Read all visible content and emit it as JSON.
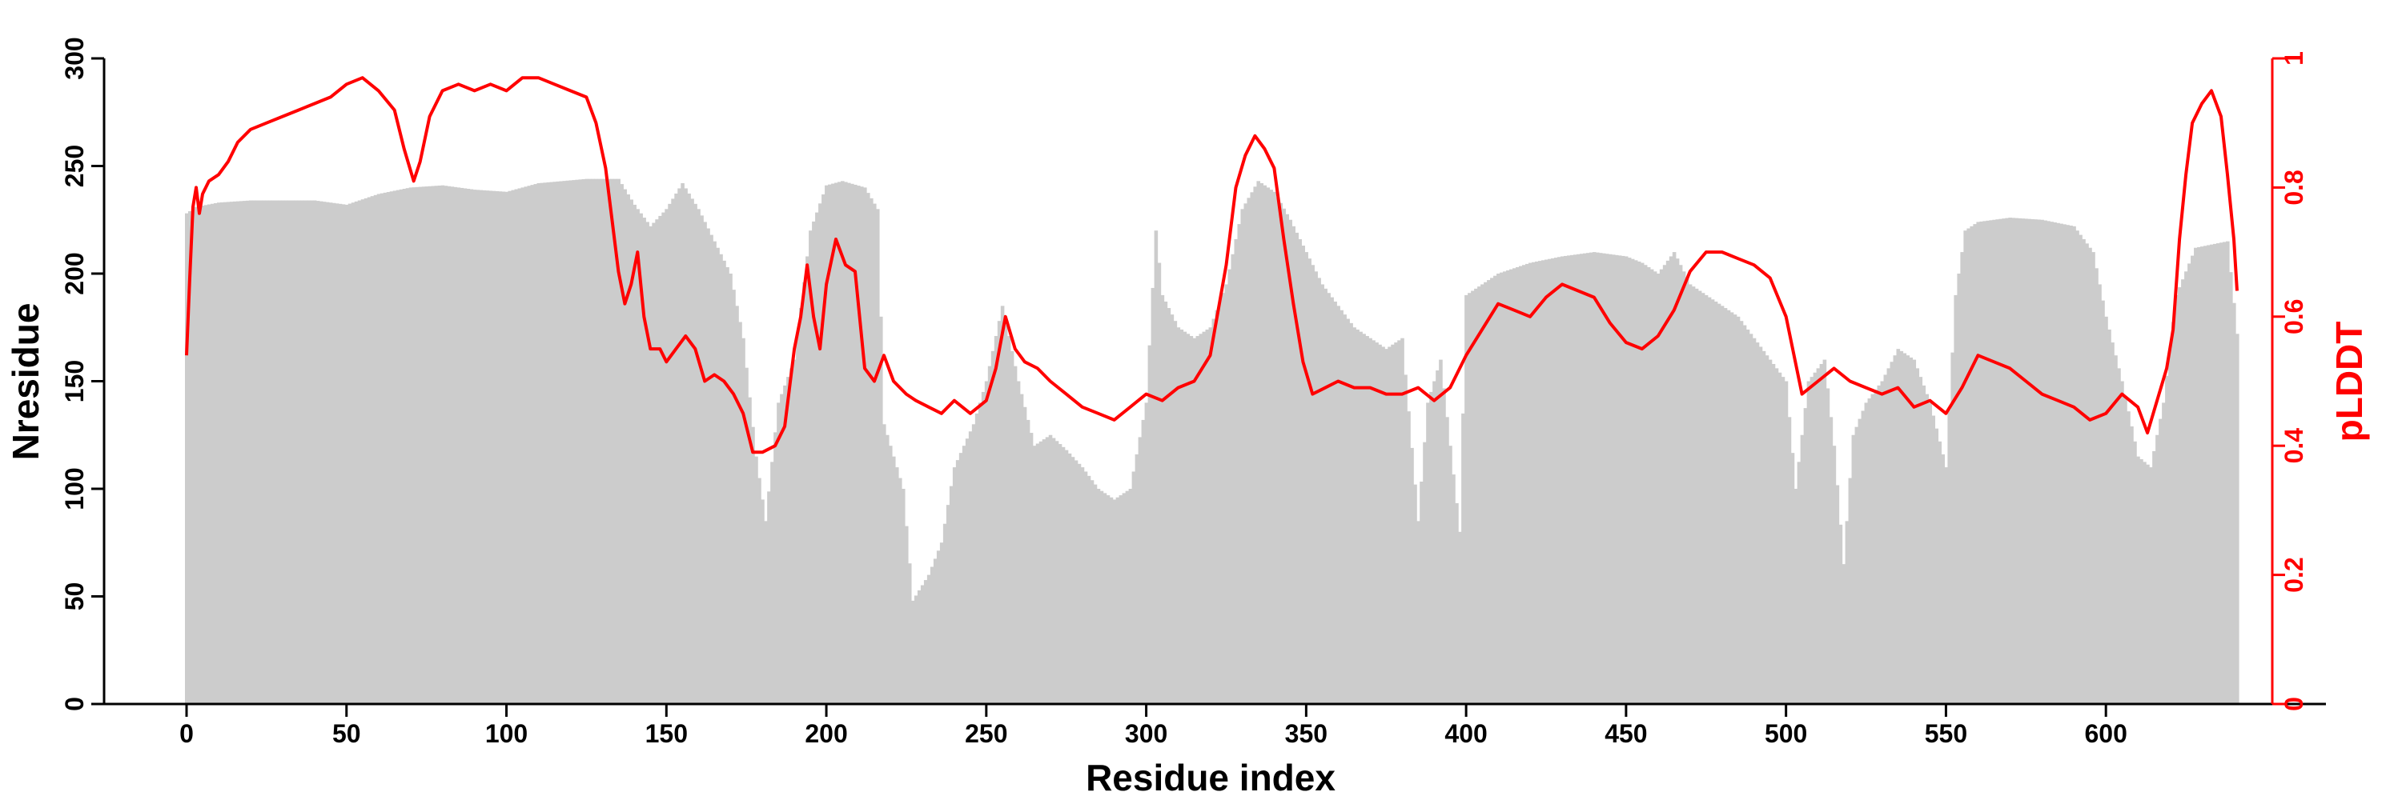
{
  "chart_data": {
    "type": "bar+line",
    "xlabel": "Residue index",
    "ylabel_left": "Nresidue",
    "ylabel_right": "pLDDT",
    "xlim": [
      -20,
      640
    ],
    "ylim_left": [
      0,
      300
    ],
    "ylim_right": [
      0,
      1
    ],
    "x_ticks": [
      0,
      50,
      100,
      150,
      200,
      250,
      300,
      350,
      400,
      450,
      500,
      550,
      600
    ],
    "y_left_ticks": [
      0,
      50,
      100,
      150,
      200,
      250,
      300
    ],
    "y_right_ticks": [
      0,
      0.2,
      0.4,
      0.6,
      0.8,
      1
    ],
    "grid": false,
    "colors": {
      "bars": "#cccccc",
      "line": "#ff0000",
      "axis": "#000000",
      "right_axis": "#ff0000"
    },
    "bar_anchors": [
      [
        0,
        228
      ],
      [
        3,
        231
      ],
      [
        10,
        233
      ],
      [
        20,
        234
      ],
      [
        40,
        234
      ],
      [
        50,
        232
      ],
      [
        60,
        237
      ],
      [
        70,
        240
      ],
      [
        80,
        241
      ],
      [
        90,
        239
      ],
      [
        100,
        238
      ],
      [
        110,
        242
      ],
      [
        125,
        244
      ],
      [
        130,
        244
      ],
      [
        135,
        244
      ],
      [
        140,
        232
      ],
      [
        145,
        222
      ],
      [
        150,
        230
      ],
      [
        155,
        242
      ],
      [
        160,
        230
      ],
      [
        165,
        215
      ],
      [
        170,
        200
      ],
      [
        174,
        170
      ],
      [
        178,
        115
      ],
      [
        181,
        85
      ],
      [
        185,
        140
      ],
      [
        190,
        160
      ],
      [
        195,
        220
      ],
      [
        200,
        241
      ],
      [
        205,
        243
      ],
      [
        212,
        240
      ],
      [
        216,
        230
      ],
      [
        218,
        130
      ],
      [
        224,
        100
      ],
      [
        227,
        48
      ],
      [
        232,
        60
      ],
      [
        236,
        75
      ],
      [
        240,
        110
      ],
      [
        246,
        130
      ],
      [
        250,
        150
      ],
      [
        255,
        185
      ],
      [
        260,
        150
      ],
      [
        265,
        120
      ],
      [
        270,
        125
      ],
      [
        275,
        118
      ],
      [
        280,
        110
      ],
      [
        285,
        100
      ],
      [
        290,
        95
      ],
      [
        295,
        100
      ],
      [
        300,
        140
      ],
      [
        303,
        220
      ],
      [
        305,
        190
      ],
      [
        310,
        175
      ],
      [
        315,
        170
      ],
      [
        320,
        175
      ],
      [
        325,
        195
      ],
      [
        330,
        230
      ],
      [
        335,
        243
      ],
      [
        340,
        238
      ],
      [
        345,
        225
      ],
      [
        350,
        210
      ],
      [
        355,
        195
      ],
      [
        360,
        185
      ],
      [
        365,
        175
      ],
      [
        370,
        170
      ],
      [
        375,
        165
      ],
      [
        380,
        170
      ],
      [
        385,
        85
      ],
      [
        388,
        140
      ],
      [
        392,
        160
      ],
      [
        395,
        120
      ],
      [
        398,
        80
      ],
      [
        400,
        190
      ],
      [
        405,
        195
      ],
      [
        410,
        200
      ],
      [
        420,
        205
      ],
      [
        430,
        208
      ],
      [
        440,
        210
      ],
      [
        450,
        208
      ],
      [
        455,
        205
      ],
      [
        460,
        200
      ],
      [
        465,
        210
      ],
      [
        470,
        195
      ],
      [
        475,
        190
      ],
      [
        480,
        185
      ],
      [
        485,
        180
      ],
      [
        490,
        170
      ],
      [
        495,
        160
      ],
      [
        500,
        150
      ],
      [
        503,
        100
      ],
      [
        507,
        150
      ],
      [
        512,
        160
      ],
      [
        515,
        120
      ],
      [
        518,
        65
      ],
      [
        521,
        125
      ],
      [
        525,
        140
      ],
      [
        530,
        150
      ],
      [
        535,
        165
      ],
      [
        540,
        160
      ],
      [
        545,
        140
      ],
      [
        550,
        110
      ],
      [
        553,
        190
      ],
      [
        556,
        220
      ],
      [
        560,
        224
      ],
      [
        570,
        226
      ],
      [
        580,
        225
      ],
      [
        590,
        222
      ],
      [
        596,
        210
      ],
      [
        600,
        180
      ],
      [
        605,
        150
      ],
      [
        610,
        115
      ],
      [
        614,
        110
      ],
      [
        618,
        140
      ],
      [
        622,
        190
      ],
      [
        628,
        212
      ],
      [
        638,
        215
      ],
      [
        641,
        172
      ]
    ],
    "plddt_anchors": [
      [
        0,
        0.54
      ],
      [
        1,
        0.66
      ],
      [
        2,
        0.77
      ],
      [
        3,
        0.8
      ],
      [
        4,
        0.76
      ],
      [
        5,
        0.79
      ],
      [
        7,
        0.81
      ],
      [
        10,
        0.82
      ],
      [
        13,
        0.84
      ],
      [
        16,
        0.87
      ],
      [
        20,
        0.89
      ],
      [
        25,
        0.9
      ],
      [
        30,
        0.91
      ],
      [
        35,
        0.92
      ],
      [
        40,
        0.93
      ],
      [
        45,
        0.94
      ],
      [
        50,
        0.96
      ],
      [
        55,
        0.97
      ],
      [
        60,
        0.95
      ],
      [
        65,
        0.92
      ],
      [
        68,
        0.86
      ],
      [
        71,
        0.81
      ],
      [
        73,
        0.84
      ],
      [
        76,
        0.91
      ],
      [
        80,
        0.95
      ],
      [
        85,
        0.96
      ],
      [
        90,
        0.95
      ],
      [
        95,
        0.96
      ],
      [
        100,
        0.95
      ],
      [
        105,
        0.97
      ],
      [
        110,
        0.97
      ],
      [
        115,
        0.96
      ],
      [
        120,
        0.95
      ],
      [
        125,
        0.94
      ],
      [
        128,
        0.9
      ],
      [
        131,
        0.83
      ],
      [
        133,
        0.75
      ],
      [
        135,
        0.67
      ],
      [
        137,
        0.62
      ],
      [
        139,
        0.65
      ],
      [
        141,
        0.7
      ],
      [
        143,
        0.6
      ],
      [
        145,
        0.55
      ],
      [
        148,
        0.55
      ],
      [
        150,
        0.53
      ],
      [
        153,
        0.55
      ],
      [
        156,
        0.57
      ],
      [
        159,
        0.55
      ],
      [
        162,
        0.5
      ],
      [
        165,
        0.51
      ],
      [
        168,
        0.5
      ],
      [
        171,
        0.48
      ],
      [
        174,
        0.45
      ],
      [
        177,
        0.39
      ],
      [
        180,
        0.39
      ],
      [
        184,
        0.4
      ],
      [
        187,
        0.43
      ],
      [
        190,
        0.55
      ],
      [
        192,
        0.6
      ],
      [
        194,
        0.68
      ],
      [
        196,
        0.6
      ],
      [
        198,
        0.55
      ],
      [
        200,
        0.65
      ],
      [
        203,
        0.72
      ],
      [
        206,
        0.68
      ],
      [
        209,
        0.67
      ],
      [
        212,
        0.52
      ],
      [
        215,
        0.5
      ],
      [
        218,
        0.54
      ],
      [
        221,
        0.5
      ],
      [
        225,
        0.48
      ],
      [
        228,
        0.47
      ],
      [
        232,
        0.46
      ],
      [
        236,
        0.45
      ],
      [
        240,
        0.47
      ],
      [
        245,
        0.45
      ],
      [
        250,
        0.47
      ],
      [
        253,
        0.52
      ],
      [
        256,
        0.6
      ],
      [
        259,
        0.55
      ],
      [
        262,
        0.53
      ],
      [
        266,
        0.52
      ],
      [
        270,
        0.5
      ],
      [
        275,
        0.48
      ],
      [
        280,
        0.46
      ],
      [
        285,
        0.45
      ],
      [
        290,
        0.44
      ],
      [
        295,
        0.46
      ],
      [
        300,
        0.48
      ],
      [
        305,
        0.47
      ],
      [
        310,
        0.49
      ],
      [
        315,
        0.5
      ],
      [
        320,
        0.54
      ],
      [
        325,
        0.68
      ],
      [
        328,
        0.8
      ],
      [
        331,
        0.85
      ],
      [
        334,
        0.88
      ],
      [
        337,
        0.86
      ],
      [
        340,
        0.83
      ],
      [
        343,
        0.72
      ],
      [
        346,
        0.62
      ],
      [
        349,
        0.53
      ],
      [
        352,
        0.48
      ],
      [
        356,
        0.49
      ],
      [
        360,
        0.5
      ],
      [
        365,
        0.49
      ],
      [
        370,
        0.49
      ],
      [
        375,
        0.48
      ],
      [
        380,
        0.48
      ],
      [
        385,
        0.49
      ],
      [
        390,
        0.47
      ],
      [
        395,
        0.49
      ],
      [
        400,
        0.54
      ],
      [
        405,
        0.58
      ],
      [
        410,
        0.62
      ],
      [
        415,
        0.61
      ],
      [
        420,
        0.6
      ],
      [
        425,
        0.63
      ],
      [
        430,
        0.65
      ],
      [
        435,
        0.64
      ],
      [
        440,
        0.63
      ],
      [
        445,
        0.59
      ],
      [
        450,
        0.56
      ],
      [
        455,
        0.55
      ],
      [
        460,
        0.57
      ],
      [
        465,
        0.61
      ],
      [
        470,
        0.67
      ],
      [
        475,
        0.7
      ],
      [
        480,
        0.7
      ],
      [
        485,
        0.69
      ],
      [
        490,
        0.68
      ],
      [
        495,
        0.66
      ],
      [
        500,
        0.6
      ],
      [
        505,
        0.48
      ],
      [
        510,
        0.5
      ],
      [
        515,
        0.52
      ],
      [
        520,
        0.5
      ],
      [
        525,
        0.49
      ],
      [
        530,
        0.48
      ],
      [
        535,
        0.49
      ],
      [
        540,
        0.46
      ],
      [
        545,
        0.47
      ],
      [
        550,
        0.45
      ],
      [
        555,
        0.49
      ],
      [
        560,
        0.54
      ],
      [
        565,
        0.53
      ],
      [
        570,
        0.52
      ],
      [
        575,
        0.5
      ],
      [
        580,
        0.48
      ],
      [
        585,
        0.47
      ],
      [
        590,
        0.46
      ],
      [
        595,
        0.44
      ],
      [
        600,
        0.45
      ],
      [
        605,
        0.48
      ],
      [
        610,
        0.46
      ],
      [
        613,
        0.42
      ],
      [
        616,
        0.47
      ],
      [
        619,
        0.52
      ],
      [
        621,
        0.58
      ],
      [
        623,
        0.72
      ],
      [
        625,
        0.82
      ],
      [
        627,
        0.9
      ],
      [
        630,
        0.93
      ],
      [
        633,
        0.95
      ],
      [
        636,
        0.91
      ],
      [
        638,
        0.82
      ],
      [
        640,
        0.72
      ],
      [
        641,
        0.64
      ]
    ]
  }
}
